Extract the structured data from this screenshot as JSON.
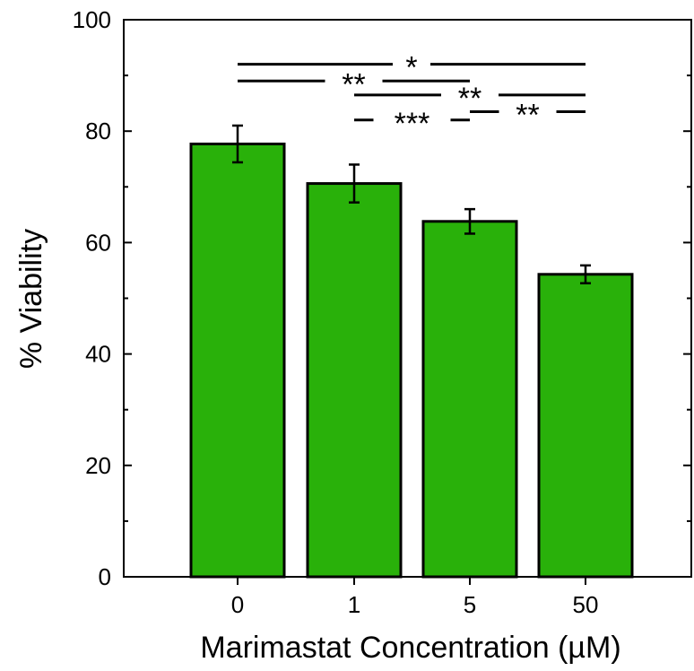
{
  "chart_data": {
    "type": "bar",
    "title": "",
    "xlabel": "Marimastat Concentration (µM)",
    "ylabel": "% Viability",
    "categories": [
      "0",
      "1",
      "5",
      "50"
    ],
    "values": [
      77.7,
      70.6,
      63.8,
      54.3
    ],
    "errors": [
      3.3,
      3.4,
      2.2,
      1.6
    ],
    "ylim": [
      0,
      100
    ],
    "yticks": [
      0,
      20,
      40,
      60,
      80,
      100
    ],
    "yticklabels": [
      "0",
      "20",
      "40",
      "60",
      "80",
      "100"
    ],
    "minor_ytick_step": 10,
    "grid": false,
    "bar_color": "#29b10a",
    "edge_color": "#000000",
    "significance": [
      {
        "from": 0,
        "to": 3,
        "y": 92,
        "label": "*"
      },
      {
        "from": 0,
        "to": 2,
        "y": 89,
        "label": "**"
      },
      {
        "from": 1,
        "to": 3,
        "y": 86.5,
        "label": "**"
      },
      {
        "from": 2,
        "to": 3,
        "y": 83.5,
        "label": "**"
      },
      {
        "from": 1,
        "to": 2,
        "y": 82,
        "label": "***"
      }
    ]
  }
}
